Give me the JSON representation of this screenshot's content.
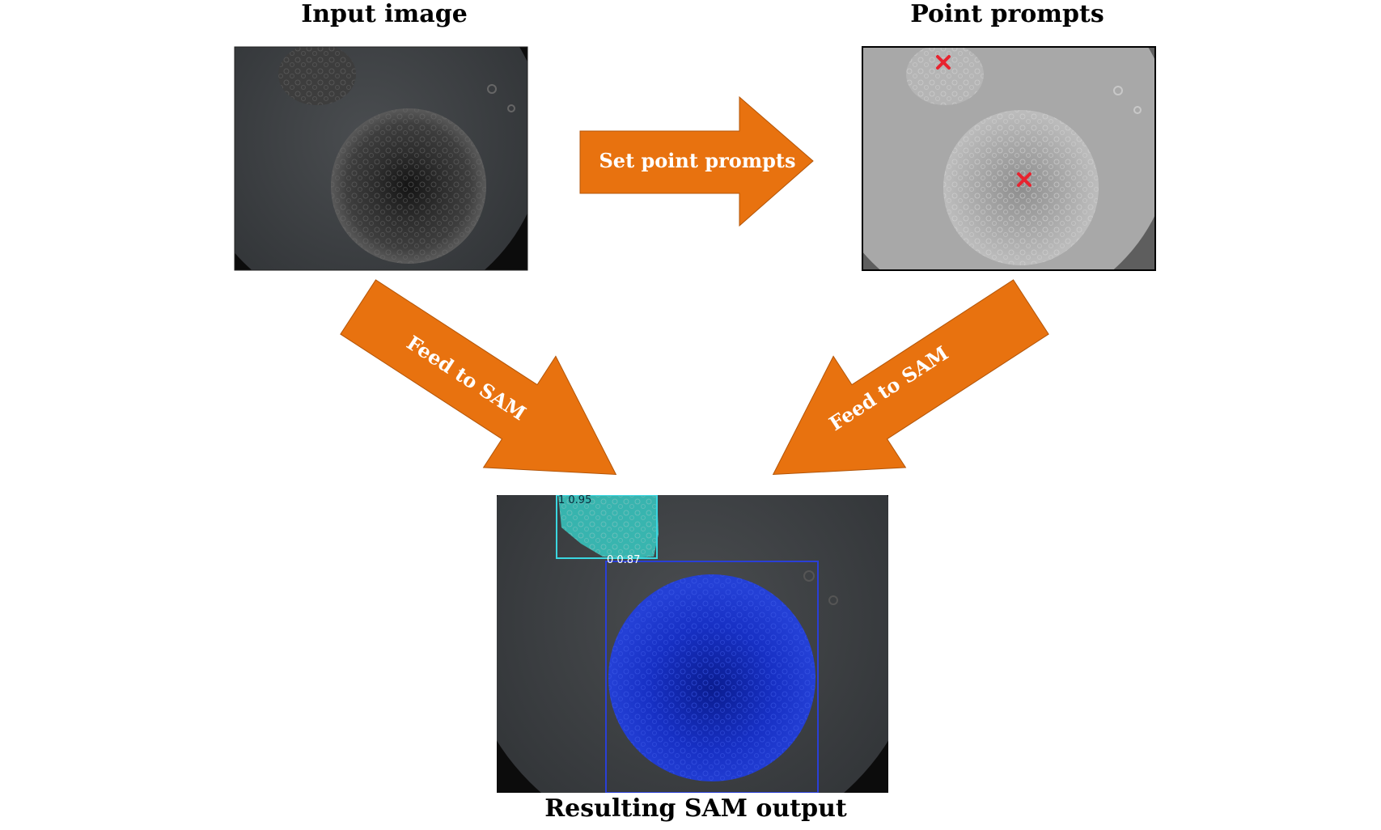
{
  "titles": {
    "input": "Input image",
    "prompts": "Point prompts",
    "output": "Resulting SAM output"
  },
  "arrows": {
    "set_point_prompts": "Set point prompts",
    "feed_left": "Feed to SAM",
    "feed_right": "Feed to SAM"
  },
  "detections": [
    {
      "label": "1 0.95",
      "color": "#3ad6e0"
    },
    {
      "label": "0 0.87",
      "color": "#2a3fd6"
    }
  ],
  "colors": {
    "arrow": "#e8720f",
    "arrow_stroke": "#b35508",
    "prompt_marker": "#e8232f",
    "mask_small": "#37c9c2",
    "mask_large": "#1a2fcf"
  }
}
